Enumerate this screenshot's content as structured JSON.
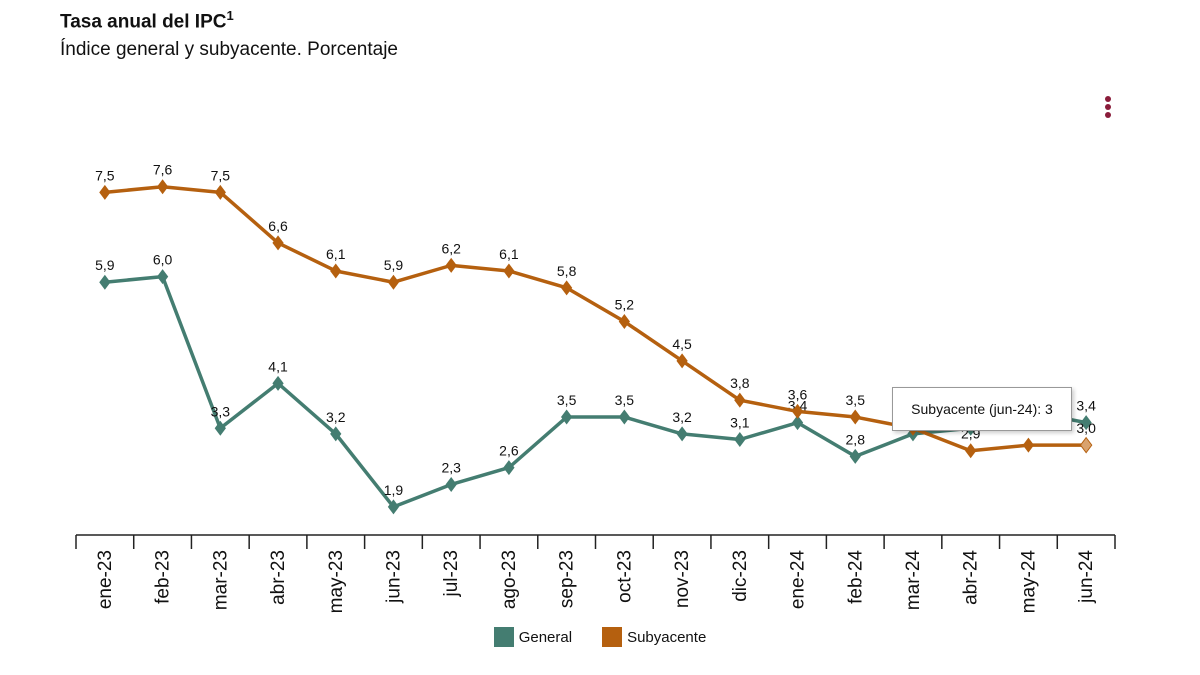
{
  "header": {
    "title": "Tasa anual del IPC",
    "title_sup": "1",
    "subtitle": "Índice general y subyacente. Porcentaje"
  },
  "menu": {
    "icon": "kebab-menu-icon",
    "color": "#8a1c3a"
  },
  "tooltip": {
    "text": "Subyacente (jun-24): 3"
  },
  "chart_data": {
    "type": "line",
    "categories": [
      "ene-23",
      "feb-23",
      "mar-23",
      "abr-23",
      "may-23",
      "jun-23",
      "jul-23",
      "ago-23",
      "sep-23",
      "oct-23",
      "nov-23",
      "dic-23",
      "ene-24",
      "feb-24",
      "mar-24",
      "abr-24",
      "may-24",
      "jun-24"
    ],
    "series": [
      {
        "name": "General",
        "color": "#447d71",
        "values": [
          5.9,
          6.0,
          3.3,
          4.1,
          3.2,
          1.9,
          2.3,
          2.6,
          3.5,
          3.5,
          3.2,
          3.1,
          3.4,
          2.8,
          3.2,
          3.3,
          3.6,
          3.4
        ],
        "labels": [
          "5,9",
          "6,0",
          "3,3",
          "4,1",
          "3,2",
          "1,9",
          "2,3",
          "2,6",
          "3,5",
          "3,5",
          "3,2",
          "3,1",
          "3,4",
          "2,8",
          "",
          "",
          "",
          "3,4"
        ]
      },
      {
        "name": "Subyacente",
        "color": "#b5600f",
        "values": [
          7.5,
          7.6,
          7.5,
          6.6,
          6.1,
          5.9,
          6.2,
          6.1,
          5.8,
          5.2,
          4.5,
          3.8,
          3.6,
          3.5,
          3.3,
          2.9,
          3.0,
          3.0
        ],
        "labels": [
          "7,5",
          "7,6",
          "7,5",
          "6,6",
          "6,1",
          "5,9",
          "6,2",
          "6,1",
          "5,8",
          "5,2",
          "4,5",
          "3,8",
          "3,6",
          "3,5",
          "",
          "2,9",
          "",
          "3,0"
        ]
      }
    ],
    "ylim": [
      1.4,
      9.5
    ],
    "marker": "diamond",
    "grid": false,
    "legend_position": "bottom"
  }
}
